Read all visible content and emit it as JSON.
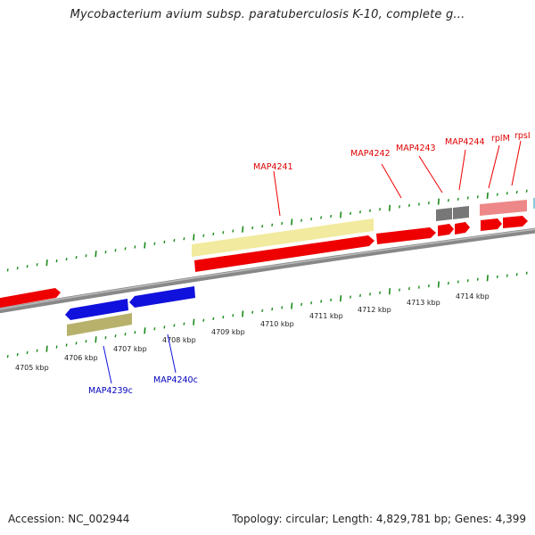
{
  "title": "Mycobacterium avium subsp. paratuberculosis K-10, complete g...",
  "footer": {
    "accession": "Accession: NC_002944",
    "summary": "Topology: circular; Length: 4,829,781 bp; Genes: 4,399"
  },
  "colors": {
    "forward_gene": "#ee0000",
    "reverse_gene": "#1111dd",
    "rrna_track": "#f2ea9e",
    "rrna_track_lower": "#b7b16c",
    "gray_gene": "#777777",
    "pink_gene": "#ee8888",
    "backbone": "#888888",
    "tick": "#1a8a1a"
  },
  "scale_labels": [
    "4705 kbp",
    "4706 kbp",
    "4707 kbp",
    "4708 kbp",
    "4709 kbp",
    "4710 kbp",
    "4711 kbp",
    "4712 kbp",
    "4713 kbp",
    "4714 kbp"
  ],
  "gene_labels": [
    {
      "text": "MAP4241",
      "strand": "forward"
    },
    {
      "text": "MAP4242",
      "strand": "forward"
    },
    {
      "text": "MAP4243",
      "strand": "forward"
    },
    {
      "text": "MAP4244",
      "strand": "forward"
    },
    {
      "text": "rplM",
      "strand": "forward"
    },
    {
      "text": "rpsI",
      "strand": "forward"
    },
    {
      "text": "MAP4239c",
      "strand": "reverse"
    },
    {
      "text": "MAP4240c",
      "strand": "reverse"
    }
  ]
}
